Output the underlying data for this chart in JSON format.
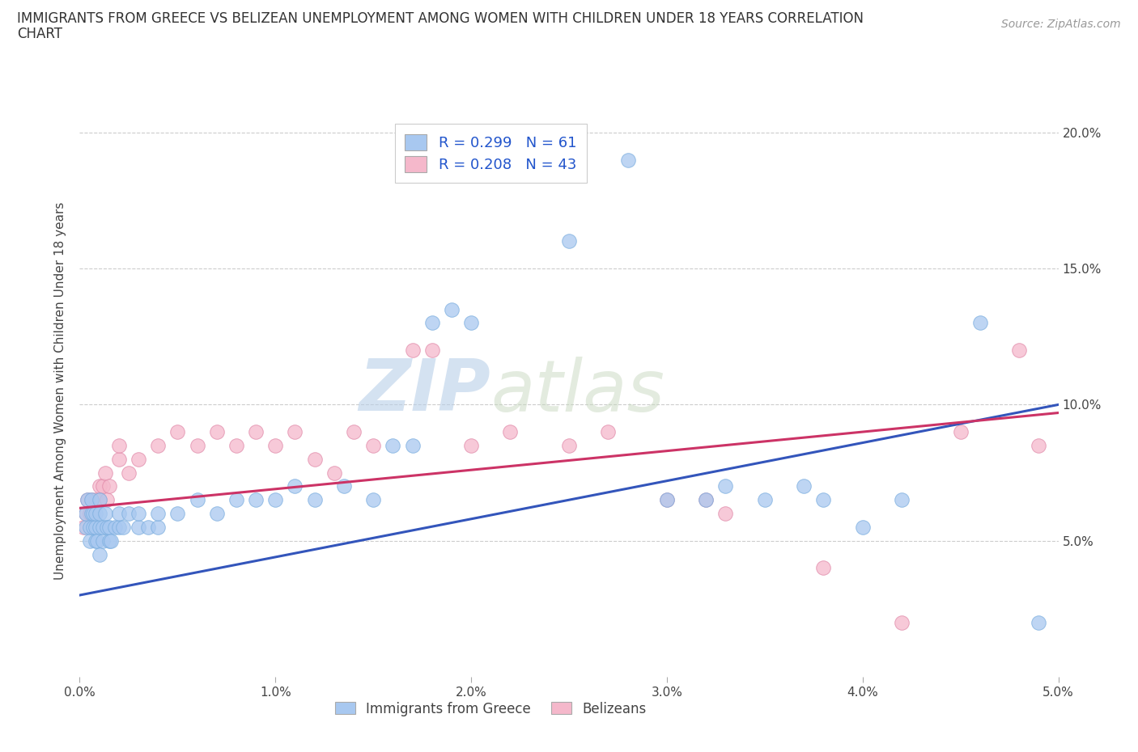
{
  "title_line1": "IMMIGRANTS FROM GREECE VS BELIZEAN UNEMPLOYMENT AMONG WOMEN WITH CHILDREN UNDER 18 YEARS CORRELATION",
  "title_line2": "CHART",
  "source": "Source: ZipAtlas.com",
  "ylabel": "Unemployment Among Women with Children Under 18 years",
  "xlim": [
    0.0,
    0.05
  ],
  "ylim": [
    0.0,
    0.21
  ],
  "xticks": [
    0.0,
    0.01,
    0.02,
    0.03,
    0.04,
    0.05
  ],
  "xticklabels": [
    "0.0%",
    "1.0%",
    "2.0%",
    "3.0%",
    "4.0%",
    "5.0%"
  ],
  "yticks": [
    0.0,
    0.05,
    0.1,
    0.15,
    0.2
  ],
  "yticklabels": [
    "",
    "5.0%",
    "10.0%",
    "15.0%",
    "20.0%"
  ],
  "blue_R": 0.299,
  "blue_N": 61,
  "pink_R": 0.208,
  "pink_N": 43,
  "blue_color": "#a8c8f0",
  "blue_edge_color": "#7aadde",
  "pink_color": "#f5b8cb",
  "pink_edge_color": "#e088a8",
  "blue_line_color": "#3355bb",
  "pink_line_color": "#cc3366",
  "blue_scatter": [
    [
      0.0003,
      0.055
    ],
    [
      0.0003,
      0.06
    ],
    [
      0.0004,
      0.065
    ],
    [
      0.0005,
      0.05
    ],
    [
      0.0005,
      0.055
    ],
    [
      0.0006,
      0.06
    ],
    [
      0.0006,
      0.065
    ],
    [
      0.0007,
      0.055
    ],
    [
      0.0007,
      0.06
    ],
    [
      0.0008,
      0.05
    ],
    [
      0.0008,
      0.055
    ],
    [
      0.0008,
      0.06
    ],
    [
      0.0009,
      0.05
    ],
    [
      0.001,
      0.045
    ],
    [
      0.001,
      0.055
    ],
    [
      0.001,
      0.06
    ],
    [
      0.001,
      0.065
    ],
    [
      0.0012,
      0.05
    ],
    [
      0.0012,
      0.055
    ],
    [
      0.0013,
      0.06
    ],
    [
      0.0014,
      0.055
    ],
    [
      0.0015,
      0.05
    ],
    [
      0.0015,
      0.055
    ],
    [
      0.0016,
      0.05
    ],
    [
      0.0018,
      0.055
    ],
    [
      0.002,
      0.055
    ],
    [
      0.002,
      0.06
    ],
    [
      0.0022,
      0.055
    ],
    [
      0.0025,
      0.06
    ],
    [
      0.003,
      0.055
    ],
    [
      0.003,
      0.06
    ],
    [
      0.0035,
      0.055
    ],
    [
      0.004,
      0.055
    ],
    [
      0.004,
      0.06
    ],
    [
      0.005,
      0.06
    ],
    [
      0.006,
      0.065
    ],
    [
      0.007,
      0.06
    ],
    [
      0.008,
      0.065
    ],
    [
      0.009,
      0.065
    ],
    [
      0.01,
      0.065
    ],
    [
      0.011,
      0.07
    ],
    [
      0.012,
      0.065
    ],
    [
      0.0135,
      0.07
    ],
    [
      0.015,
      0.065
    ],
    [
      0.016,
      0.085
    ],
    [
      0.017,
      0.085
    ],
    [
      0.018,
      0.13
    ],
    [
      0.019,
      0.135
    ],
    [
      0.02,
      0.13
    ],
    [
      0.025,
      0.16
    ],
    [
      0.028,
      0.19
    ],
    [
      0.03,
      0.065
    ],
    [
      0.032,
      0.065
    ],
    [
      0.033,
      0.07
    ],
    [
      0.035,
      0.065
    ],
    [
      0.037,
      0.07
    ],
    [
      0.038,
      0.065
    ],
    [
      0.04,
      0.055
    ],
    [
      0.042,
      0.065
    ],
    [
      0.046,
      0.13
    ],
    [
      0.049,
      0.02
    ]
  ],
  "pink_scatter": [
    [
      0.0002,
      0.055
    ],
    [
      0.0003,
      0.06
    ],
    [
      0.0004,
      0.065
    ],
    [
      0.0005,
      0.06
    ],
    [
      0.0006,
      0.065
    ],
    [
      0.0007,
      0.06
    ],
    [
      0.0008,
      0.065
    ],
    [
      0.001,
      0.065
    ],
    [
      0.001,
      0.07
    ],
    [
      0.0012,
      0.07
    ],
    [
      0.0013,
      0.075
    ],
    [
      0.0014,
      0.065
    ],
    [
      0.0015,
      0.07
    ],
    [
      0.002,
      0.08
    ],
    [
      0.002,
      0.085
    ],
    [
      0.0025,
      0.075
    ],
    [
      0.003,
      0.08
    ],
    [
      0.004,
      0.085
    ],
    [
      0.005,
      0.09
    ],
    [
      0.006,
      0.085
    ],
    [
      0.007,
      0.09
    ],
    [
      0.008,
      0.085
    ],
    [
      0.009,
      0.09
    ],
    [
      0.01,
      0.085
    ],
    [
      0.011,
      0.09
    ],
    [
      0.012,
      0.08
    ],
    [
      0.013,
      0.075
    ],
    [
      0.014,
      0.09
    ],
    [
      0.015,
      0.085
    ],
    [
      0.017,
      0.12
    ],
    [
      0.018,
      0.12
    ],
    [
      0.02,
      0.085
    ],
    [
      0.022,
      0.09
    ],
    [
      0.025,
      0.085
    ],
    [
      0.027,
      0.09
    ],
    [
      0.03,
      0.065
    ],
    [
      0.032,
      0.065
    ],
    [
      0.033,
      0.06
    ],
    [
      0.038,
      0.04
    ],
    [
      0.042,
      0.02
    ],
    [
      0.045,
      0.09
    ],
    [
      0.048,
      0.12
    ],
    [
      0.049,
      0.085
    ]
  ],
  "blue_line": [
    [
      0.0,
      0.03
    ],
    [
      0.05,
      0.1
    ]
  ],
  "pink_line": [
    [
      0.0,
      0.062
    ],
    [
      0.05,
      0.097
    ]
  ],
  "watermark_top": "ZIP",
  "watermark_bot": "atlas",
  "watermark_color": "#c8dff0",
  "background_color": "#ffffff",
  "grid_color": "#cccccc"
}
